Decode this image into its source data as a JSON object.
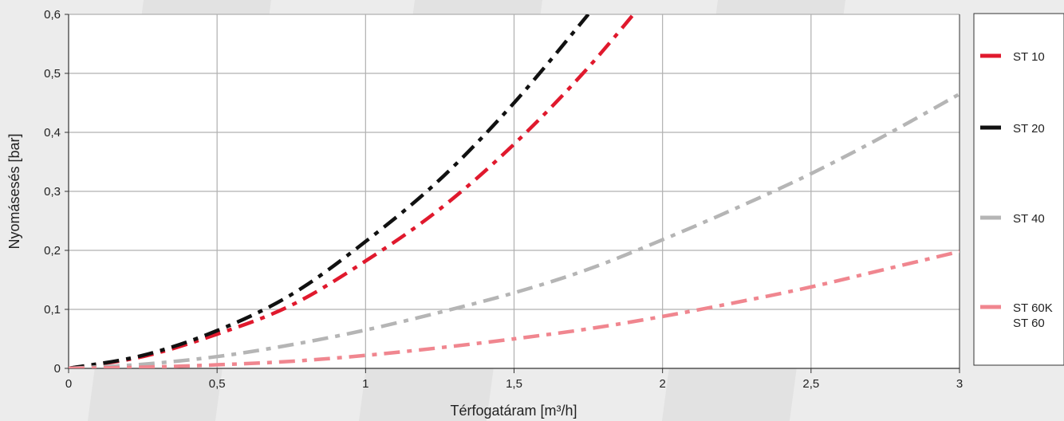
{
  "chart_data": {
    "type": "line",
    "xlabel": "Térfogatáram [m³/h]",
    "ylabel": "Nyomásesés [bar]",
    "xlim": [
      0,
      3
    ],
    "ylim": [
      0,
      0.6
    ],
    "x_ticks": [
      "0",
      "0,5",
      "1",
      "1,5",
      "2",
      "2,5",
      "3"
    ],
    "y_ticks": [
      "0",
      "0,1",
      "0,2",
      "0,3",
      "0,4",
      "0,5",
      "0,6"
    ],
    "grid": true,
    "legend_position": "right",
    "x": [
      0,
      0.25,
      0.5,
      0.75,
      1,
      1.25,
      1.5,
      1.75,
      2,
      2.25,
      2.5,
      2.75,
      3
    ],
    "series": [
      {
        "name": "ST 10",
        "color": "#e0192d",
        "values": [
          0,
          0.02,
          0.058,
          0.107,
          0.182,
          0.27,
          0.38,
          0.51,
          0.66,
          null,
          null,
          null,
          null
        ]
      },
      {
        "name": "ST 20",
        "color": "#111111",
        "values": [
          0,
          0.022,
          0.064,
          0.125,
          0.215,
          0.32,
          0.45,
          0.6,
          null,
          null,
          null,
          null,
          null
        ]
      },
      {
        "name": "ST 40",
        "color": "#b5b5b5",
        "values": [
          0,
          0.007,
          0.02,
          0.04,
          0.065,
          0.095,
          0.128,
          0.168,
          0.218,
          0.272,
          0.33,
          0.395,
          0.465
        ]
      },
      {
        "name": "ST 60K\nST 60",
        "color": "#f0868f",
        "values": [
          0,
          0.002,
          0.006,
          0.012,
          0.022,
          0.035,
          0.05,
          0.067,
          0.088,
          0.112,
          0.138,
          0.168,
          0.198
        ]
      }
    ]
  }
}
